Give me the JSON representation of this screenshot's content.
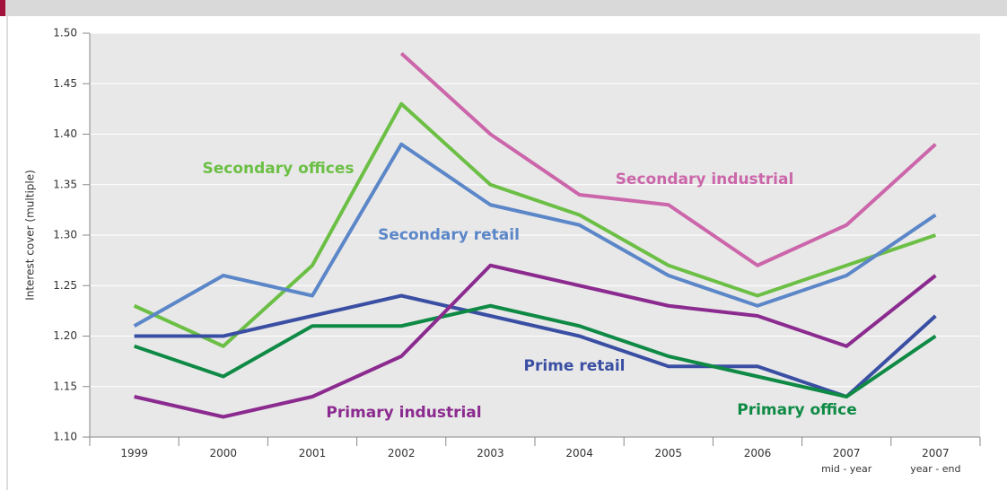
{
  "chart_data": {
    "type": "line",
    "y_label": "Interest cover (multiple)",
    "categories": [
      "1999",
      "2000",
      "2001",
      "2002",
      "2003",
      "2004",
      "2005",
      "2006",
      "2007\nmid - year",
      "2007\nyear - end"
    ],
    "series": [
      {
        "name": "Secondary industrial",
        "color": "#cc66aa",
        "values": [
          null,
          null,
          null,
          1.48,
          1.4,
          1.34,
          1.33,
          1.27,
          1.31,
          1.39
        ]
      },
      {
        "name": "Secondary offices",
        "color": "#6cbf45",
        "values": [
          1.23,
          1.19,
          1.27,
          1.43,
          1.35,
          1.32,
          1.27,
          1.24,
          1.27,
          1.3
        ]
      },
      {
        "name": "Secondary retail",
        "color": "#5b86c8",
        "values": [
          1.21,
          1.26,
          1.24,
          1.39,
          1.33,
          1.31,
          1.26,
          1.23,
          1.26,
          1.32
        ]
      },
      {
        "name": "Prime retail",
        "color": "#3a4fa3",
        "values": [
          1.2,
          1.2,
          1.22,
          1.24,
          1.22,
          1.2,
          1.17,
          1.17,
          1.14,
          1.22
        ]
      },
      {
        "name": "Primary office",
        "color": "#0f8a45",
        "values": [
          1.19,
          1.16,
          1.21,
          1.21,
          1.23,
          1.21,
          1.18,
          1.16,
          1.14,
          1.2
        ]
      },
      {
        "name": "Primary industrial",
        "color": "#8b2a8f",
        "values": [
          1.14,
          1.12,
          1.14,
          1.18,
          1.27,
          1.25,
          1.23,
          1.22,
          1.19,
          1.26
        ]
      }
    ],
    "ylim": [
      1.1,
      1.5
    ],
    "yticks": [
      {
        "value": 1.1,
        "label": "1.10"
      },
      1.15,
      {
        "value": 1.2,
        "label": "1.20"
      },
      1.25,
      {
        "value": 1.3,
        "label": "1.30"
      },
      1.35,
      {
        "value": 1.4,
        "label": "1.40"
      },
      1.45,
      {
        "value": 1.5,
        "label": "1.50"
      }
    ],
    "grid": true
  }
}
